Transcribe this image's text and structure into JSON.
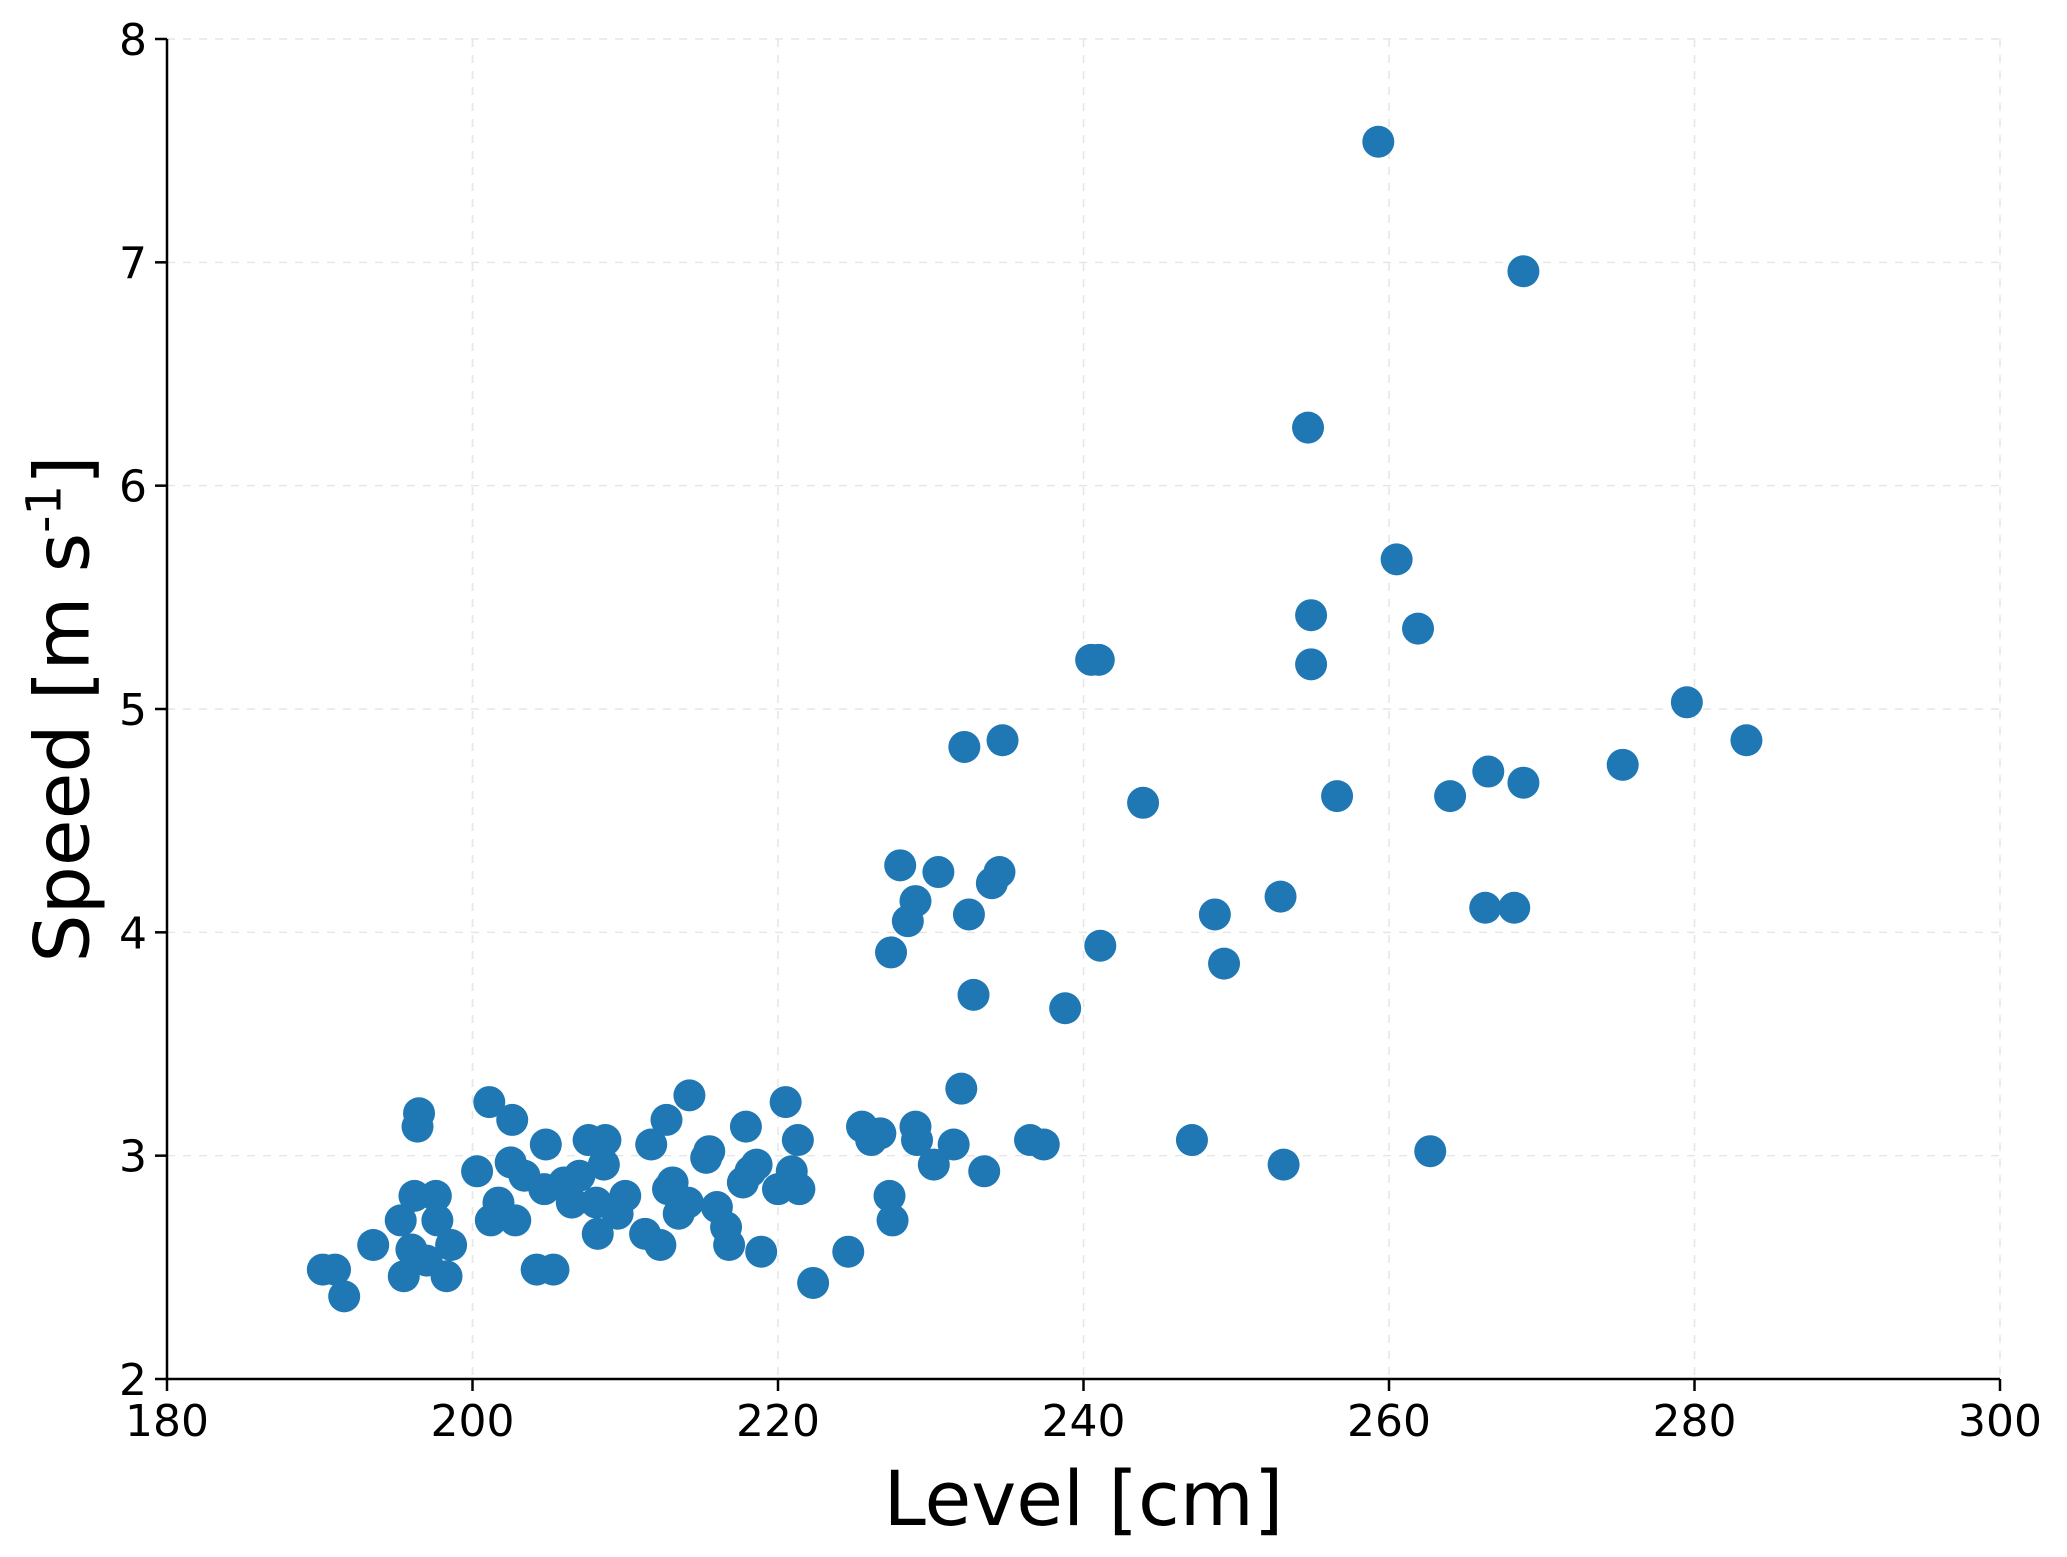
{
  "chart_data": {
    "type": "scatter",
    "title": "",
    "xlabel": "Level [cm]",
    "ylabel": {
      "main": "Speed [m s",
      "superscript": "-1",
      "close": "]"
    },
    "xlim": [
      180,
      300
    ],
    "ylim": [
      2,
      8
    ],
    "x_ticks": [
      180,
      200,
      220,
      240,
      260,
      280,
      300
    ],
    "y_ticks": [
      2,
      3,
      4,
      5,
      6,
      7,
      8
    ],
    "grid": true,
    "marker_color": "#1f77b4",
    "series": [
      {
        "points": [
          [
            190.2,
            2.49
          ],
          [
            191.0,
            2.49
          ],
          [
            191.6,
            2.37
          ],
          [
            193.5,
            2.6
          ],
          [
            195.3,
            2.71
          ],
          [
            195.5,
            2.46
          ],
          [
            196.0,
            2.58
          ],
          [
            196.2,
            2.82
          ],
          [
            196.4,
            3.13
          ],
          [
            196.5,
            3.19
          ],
          [
            197.0,
            2.53
          ],
          [
            197.6,
            2.82
          ],
          [
            197.7,
            2.71
          ],
          [
            198.3,
            2.46
          ],
          [
            198.6,
            2.6
          ],
          [
            200.3,
            2.93
          ],
          [
            201.1,
            3.24
          ],
          [
            201.2,
            2.71
          ],
          [
            201.7,
            2.79
          ],
          [
            202.5,
            2.97
          ],
          [
            202.6,
            3.16
          ],
          [
            202.8,
            2.71
          ],
          [
            203.4,
            2.91
          ],
          [
            204.2,
            2.49
          ],
          [
            204.7,
            2.85
          ],
          [
            204.8,
            3.05
          ],
          [
            205.3,
            2.49
          ],
          [
            206.0,
            2.88
          ],
          [
            206.5,
            2.79
          ],
          [
            207.0,
            2.91
          ],
          [
            207.6,
            3.07
          ],
          [
            208.1,
            2.79
          ],
          [
            208.2,
            2.65
          ],
          [
            208.6,
            2.96
          ],
          [
            208.7,
            3.07
          ],
          [
            209.5,
            2.74
          ],
          [
            210.0,
            2.82
          ],
          [
            211.3,
            2.65
          ],
          [
            211.7,
            3.05
          ],
          [
            212.3,
            2.6
          ],
          [
            212.7,
            3.16
          ],
          [
            212.8,
            2.85
          ],
          [
            213.1,
            2.88
          ],
          [
            213.5,
            2.74
          ],
          [
            214.1,
            2.79
          ],
          [
            214.2,
            3.27
          ],
          [
            215.3,
            2.99
          ],
          [
            215.5,
            3.02
          ],
          [
            216.0,
            2.77
          ],
          [
            216.6,
            2.68
          ],
          [
            216.8,
            2.6
          ],
          [
            217.7,
            2.88
          ],
          [
            217.9,
            3.13
          ],
          [
            218.2,
            2.93
          ],
          [
            218.6,
            2.96
          ],
          [
            218.9,
            2.57
          ],
          [
            220.0,
            2.85
          ],
          [
            220.5,
            3.24
          ],
          [
            220.9,
            2.93
          ],
          [
            221.3,
            3.07
          ],
          [
            221.4,
            2.85
          ],
          [
            222.3,
            2.43
          ],
          [
            224.6,
            2.57
          ],
          [
            225.5,
            3.13
          ],
          [
            226.1,
            3.07
          ],
          [
            226.7,
            3.1
          ],
          [
            227.3,
            2.82
          ],
          [
            227.4,
            3.91
          ],
          [
            227.5,
            2.71
          ],
          [
            228.0,
            4.3
          ],
          [
            228.5,
            4.05
          ],
          [
            229.0,
            4.14
          ],
          [
            229.0,
            3.13
          ],
          [
            229.1,
            3.07
          ],
          [
            230.2,
            2.96
          ],
          [
            230.5,
            4.27
          ],
          [
            231.5,
            3.05
          ],
          [
            232.0,
            3.3
          ],
          [
            232.2,
            4.83
          ],
          [
            232.5,
            4.08
          ],
          [
            232.8,
            3.72
          ],
          [
            233.5,
            2.93
          ],
          [
            234.0,
            4.22
          ],
          [
            234.5,
            4.27
          ],
          [
            234.7,
            4.86
          ],
          [
            236.5,
            3.07
          ],
          [
            237.4,
            3.05
          ],
          [
            238.8,
            3.66
          ],
          [
            240.5,
            5.22
          ],
          [
            241.0,
            5.22
          ],
          [
            241.1,
            3.94
          ],
          [
            243.9,
            4.58
          ],
          [
            247.1,
            3.07
          ],
          [
            248.6,
            4.08
          ],
          [
            249.2,
            3.86
          ],
          [
            252.9,
            4.16
          ],
          [
            253.1,
            2.96
          ],
          [
            254.7,
            6.26
          ],
          [
            254.9,
            5.42
          ],
          [
            254.9,
            5.2
          ],
          [
            256.6,
            4.61
          ],
          [
            259.3,
            7.54
          ],
          [
            260.5,
            5.67
          ],
          [
            261.9,
            5.36
          ],
          [
            262.7,
            3.02
          ],
          [
            264.0,
            4.61
          ],
          [
            266.3,
            4.11
          ],
          [
            266.5,
            4.72
          ],
          [
            268.2,
            4.11
          ],
          [
            268.8,
            4.67
          ],
          [
            268.8,
            6.96
          ],
          [
            275.3,
            4.75
          ],
          [
            279.5,
            5.03
          ],
          [
            283.4,
            4.86
          ]
        ]
      }
    ]
  }
}
